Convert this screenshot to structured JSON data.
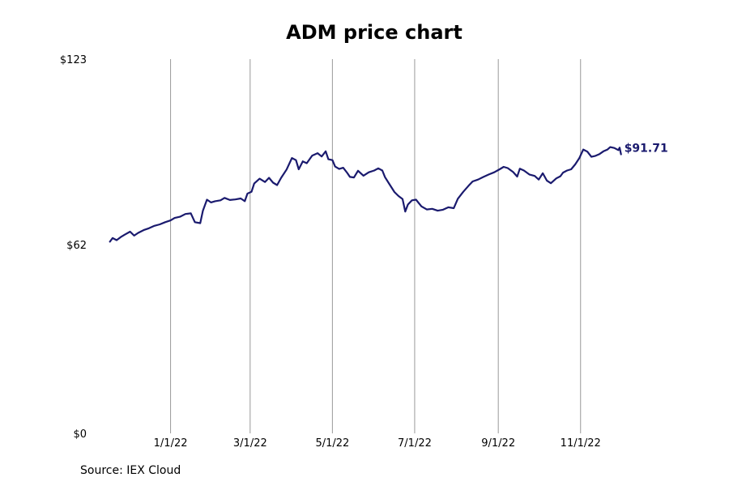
{
  "chart_data": {
    "type": "line",
    "title": "ADM price chart",
    "xlabel": "",
    "ylabel": "",
    "source": "Source: IEX Cloud",
    "x_range": [
      "2021-11-10",
      "2022-12-15"
    ],
    "ylim": [
      0,
      123
    ],
    "y_ticks": [
      {
        "value": 0,
        "label": "$0"
      },
      {
        "value": 62,
        "label": "$62"
      },
      {
        "value": 123,
        "label": "$123"
      }
    ],
    "x_ticks": [
      {
        "date": "2022-01-01",
        "label": "1/1/22"
      },
      {
        "date": "2022-03-01",
        "label": "3/1/22"
      },
      {
        "date": "2022-05-01",
        "label": "5/1/22"
      },
      {
        "date": "2022-07-01",
        "label": "7/1/22"
      },
      {
        "date": "2022-09-01",
        "label": "9/1/22"
      },
      {
        "date": "2022-11-01",
        "label": "11/1/22"
      }
    ],
    "grid_x": true,
    "grid_y": false,
    "last_value_label": "$91.71",
    "line_color": "#1a1a6e",
    "grid_color": "#999999",
    "series": [
      {
        "points": [
          [
            "2021-11-17",
            63.0
          ],
          [
            "2021-11-19",
            64.2
          ],
          [
            "2021-11-22",
            63.5
          ],
          [
            "2021-11-25",
            64.5
          ],
          [
            "2021-11-28",
            65.3
          ],
          [
            "2021-12-02",
            66.3
          ],
          [
            "2021-12-05",
            65.0
          ],
          [
            "2021-12-08",
            65.9
          ],
          [
            "2021-12-12",
            66.8
          ],
          [
            "2021-12-16",
            67.4
          ],
          [
            "2021-12-20",
            68.2
          ],
          [
            "2021-12-24",
            68.7
          ],
          [
            "2021-12-28",
            69.4
          ],
          [
            "2022-01-01",
            70.0
          ],
          [
            "2022-01-04",
            70.8
          ],
          [
            "2022-01-08",
            71.2
          ],
          [
            "2022-01-12",
            72.1
          ],
          [
            "2022-01-16",
            72.3
          ],
          [
            "2022-01-19",
            69.4
          ],
          [
            "2022-01-23",
            69.1
          ],
          [
            "2022-01-25",
            73.2
          ],
          [
            "2022-01-28",
            76.8
          ],
          [
            "2022-01-31",
            75.9
          ],
          [
            "2022-02-03",
            76.3
          ],
          [
            "2022-02-07",
            76.6
          ],
          [
            "2022-02-10",
            77.4
          ],
          [
            "2022-02-14",
            76.7
          ],
          [
            "2022-02-18",
            76.9
          ],
          [
            "2022-02-22",
            77.2
          ],
          [
            "2022-02-25",
            76.3
          ],
          [
            "2022-02-27",
            78.8
          ],
          [
            "2022-03-02",
            79.4
          ],
          [
            "2022-03-04",
            82.1
          ],
          [
            "2022-03-08",
            83.7
          ],
          [
            "2022-03-12",
            82.6
          ],
          [
            "2022-03-15",
            84.0
          ],
          [
            "2022-03-18",
            82.4
          ],
          [
            "2022-03-21",
            81.6
          ],
          [
            "2022-03-24",
            84.0
          ],
          [
            "2022-03-28",
            86.7
          ],
          [
            "2022-04-01",
            90.5
          ],
          [
            "2022-04-04",
            89.8
          ],
          [
            "2022-04-06",
            86.8
          ],
          [
            "2022-04-09",
            89.4
          ],
          [
            "2022-04-12",
            88.8
          ],
          [
            "2022-04-16",
            91.3
          ],
          [
            "2022-04-20",
            92.1
          ],
          [
            "2022-04-23",
            91.0
          ],
          [
            "2022-04-26",
            92.7
          ],
          [
            "2022-04-28",
            90.1
          ],
          [
            "2022-05-01",
            89.8
          ],
          [
            "2022-05-03",
            87.7
          ],
          [
            "2022-05-06",
            86.9
          ],
          [
            "2022-05-09",
            87.3
          ],
          [
            "2022-05-12",
            85.6
          ],
          [
            "2022-05-14",
            84.3
          ],
          [
            "2022-05-17",
            84.1
          ],
          [
            "2022-05-20",
            86.3
          ],
          [
            "2022-05-24",
            84.7
          ],
          [
            "2022-05-28",
            85.8
          ],
          [
            "2022-06-01",
            86.4
          ],
          [
            "2022-06-04",
            87.1
          ],
          [
            "2022-06-07",
            86.4
          ],
          [
            "2022-06-09",
            84.2
          ],
          [
            "2022-06-12",
            82.1
          ],
          [
            "2022-06-16",
            79.3
          ],
          [
            "2022-06-19",
            78.0
          ],
          [
            "2022-06-22",
            77.0
          ],
          [
            "2022-06-24",
            72.9
          ],
          [
            "2022-06-26",
            75.2
          ],
          [
            "2022-06-29",
            76.6
          ],
          [
            "2022-07-02",
            76.8
          ],
          [
            "2022-07-06",
            74.6
          ],
          [
            "2022-07-10",
            73.6
          ],
          [
            "2022-07-14",
            73.8
          ],
          [
            "2022-07-18",
            73.2
          ],
          [
            "2022-07-22",
            73.5
          ],
          [
            "2022-07-26",
            74.3
          ],
          [
            "2022-07-30",
            74.0
          ],
          [
            "2022-08-02",
            77.1
          ],
          [
            "2022-08-06",
            79.4
          ],
          [
            "2022-08-10",
            81.4
          ],
          [
            "2022-08-13",
            82.8
          ],
          [
            "2022-08-17",
            83.4
          ],
          [
            "2022-08-21",
            84.3
          ],
          [
            "2022-08-25",
            85.1
          ],
          [
            "2022-08-29",
            85.8
          ],
          [
            "2022-09-02",
            86.8
          ],
          [
            "2022-09-05",
            87.6
          ],
          [
            "2022-09-08",
            87.2
          ],
          [
            "2022-09-12",
            85.9
          ],
          [
            "2022-09-15",
            84.4
          ],
          [
            "2022-09-17",
            87.0
          ],
          [
            "2022-09-20",
            86.4
          ],
          [
            "2022-09-24",
            85.1
          ],
          [
            "2022-09-28",
            84.6
          ],
          [
            "2022-10-01",
            83.4
          ],
          [
            "2022-10-04",
            85.5
          ],
          [
            "2022-10-07",
            83.1
          ],
          [
            "2022-10-10",
            82.2
          ],
          [
            "2022-10-14",
            83.8
          ],
          [
            "2022-10-17",
            84.5
          ],
          [
            "2022-10-19",
            85.7
          ],
          [
            "2022-10-22",
            86.4
          ],
          [
            "2022-10-25",
            86.8
          ],
          [
            "2022-10-28",
            88.4
          ],
          [
            "2022-10-31",
            90.4
          ],
          [
            "2022-11-03",
            93.3
          ],
          [
            "2022-11-06",
            92.6
          ],
          [
            "2022-11-09",
            90.9
          ],
          [
            "2022-11-12",
            91.2
          ],
          [
            "2022-11-15",
            91.8
          ],
          [
            "2022-11-18",
            92.7
          ],
          [
            "2022-11-21",
            93.3
          ],
          [
            "2022-11-23",
            94.1
          ],
          [
            "2022-11-26",
            93.8
          ],
          [
            "2022-11-29",
            93.1
          ],
          [
            "2022-11-30",
            93.9
          ],
          [
            "2022-12-01",
            91.71
          ]
        ]
      }
    ]
  }
}
